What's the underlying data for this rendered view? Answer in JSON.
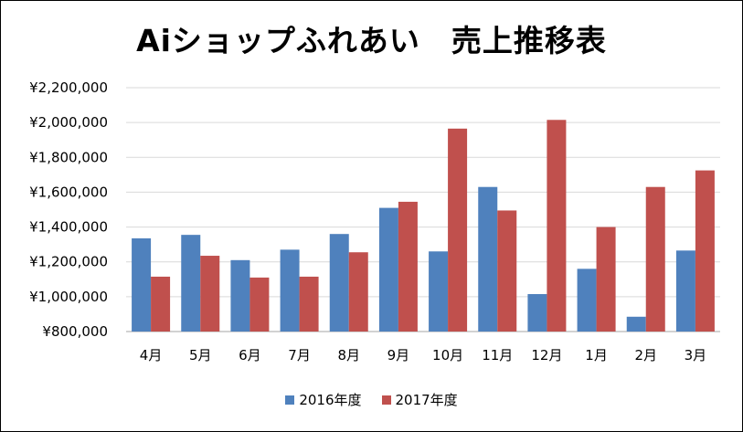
{
  "chart_data": {
    "type": "bar",
    "title": "Aiショップふれあい　売上推移表",
    "categories": [
      "4月",
      "5月",
      "6月",
      "7月",
      "8月",
      "9月",
      "10月",
      "11月",
      "12月",
      "1月",
      "2月",
      "3月"
    ],
    "series": [
      {
        "name": "2016年度",
        "color": "#4f81bd",
        "values": [
          1335000,
          1355000,
          1210000,
          1270000,
          1360000,
          1510000,
          1260000,
          1630000,
          1015000,
          1160000,
          885000,
          1265000
        ]
      },
      {
        "name": "2017年度",
        "color": "#c0504d",
        "values": [
          1115000,
          1235000,
          1110000,
          1115000,
          1255000,
          1545000,
          1965000,
          1495000,
          2015000,
          1400000,
          1630000,
          1725000
        ]
      }
    ],
    "ylim": [
      800000,
      2200000
    ],
    "yticks": [
      "¥800,000",
      "¥1,000,000",
      "¥1,200,000",
      "¥1,400,000",
      "¥1,600,000",
      "¥1,800,000",
      "¥2,000,000",
      "¥2,200,000"
    ],
    "xlabel": "",
    "ylabel": "",
    "grid": true,
    "legend_position": "bottom"
  }
}
